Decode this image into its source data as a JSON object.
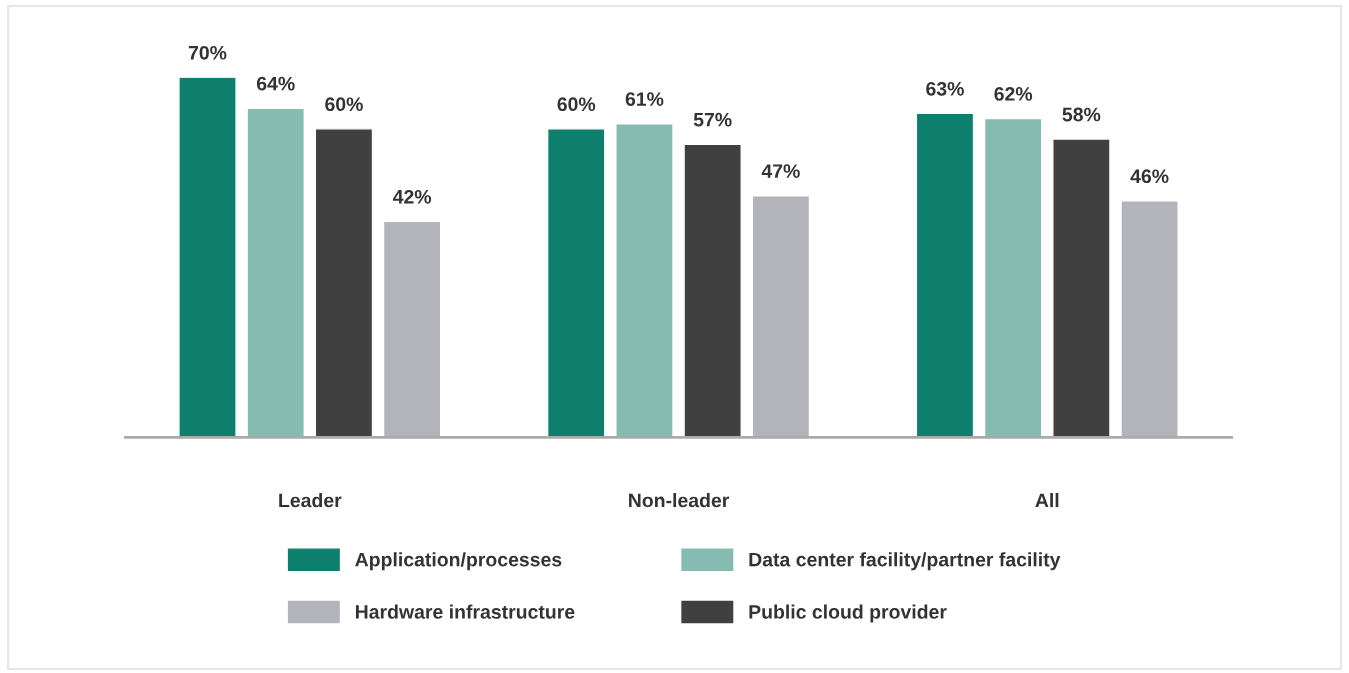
{
  "chart_data": {
    "type": "bar",
    "categories": [
      "Leader",
      "Non-leader",
      "All"
    ],
    "series": [
      {
        "name": "Application/processes",
        "color": "#0e7f6c",
        "values": [
          70,
          60,
          63
        ],
        "value_labels": [
          "70%",
          "60%",
          "63%"
        ]
      },
      {
        "name": "Data center facility/partner facility",
        "color": "#86bbb1",
        "values": [
          64,
          61,
          62
        ],
        "value_labels": [
          "64%",
          "61%",
          "62%"
        ]
      },
      {
        "name": "Public cloud provider",
        "color": "#404040",
        "values": [
          60,
          57,
          58
        ],
        "value_labels": [
          "60%",
          "57%",
          "58%"
        ]
      },
      {
        "name": "Hardware infrastructure",
        "color": "#b3b3bb",
        "values": [
          42,
          47,
          46
        ],
        "value_labels": [
          "42%",
          "47%",
          "46%"
        ]
      }
    ],
    "legend": "bottom",
    "grid": false,
    "tick_labels": "x"
  }
}
